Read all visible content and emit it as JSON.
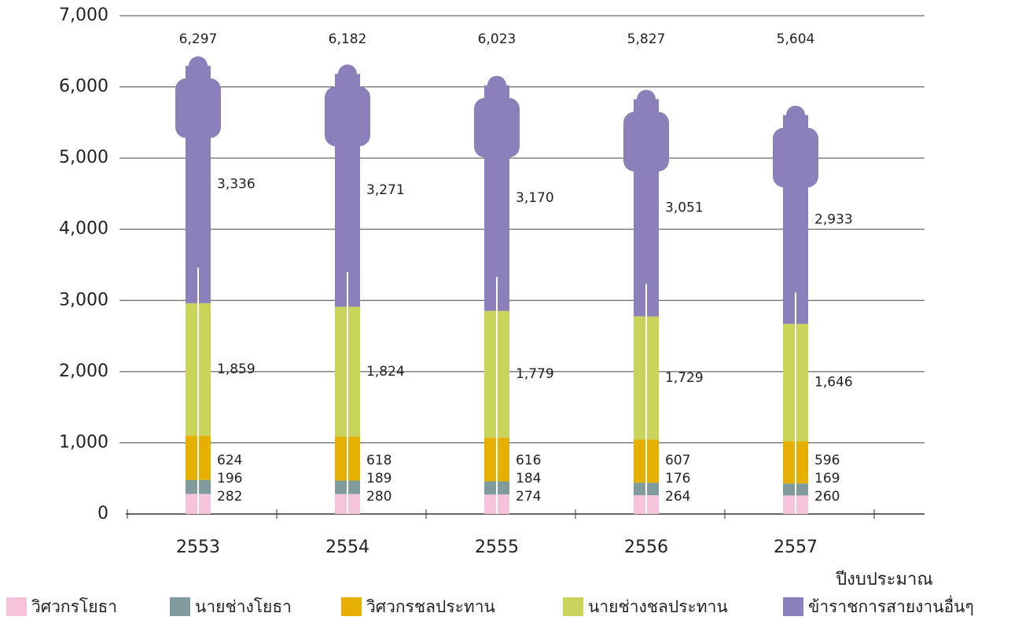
{
  "chart_data": {
    "type": "pictograph-stacked-bar",
    "categories": [
      "2553",
      "2554",
      "2555",
      "2556",
      "2557"
    ],
    "x_label": "ปีงบประมาณ",
    "series": [
      {
        "name": "วิศวกรโยธา",
        "color": "#f5c4da",
        "values": [
          282,
          280,
          274,
          264,
          260
        ],
        "value_labels": [
          "282",
          "280",
          "274",
          "264",
          "260"
        ]
      },
      {
        "name": "นายช่างโยธา",
        "color": "#7f9b9b",
        "values": [
          196,
          189,
          184,
          176,
          169
        ],
        "value_labels": [
          "196",
          "189",
          "184",
          "176",
          "169"
        ]
      },
      {
        "name": "วิศวกรชลประทาน",
        "color": "#e6b000",
        "values": [
          624,
          618,
          616,
          607,
          596
        ],
        "value_labels": [
          "624",
          "618",
          "616",
          "607",
          "596"
        ]
      },
      {
        "name": "นายช่างชลประทาน",
        "color": "#c8d45a",
        "values": [
          1859,
          1824,
          1779,
          1729,
          1646
        ],
        "value_labels": [
          "1,859",
          "1,824",
          "1,779",
          "1,729",
          "1,646"
        ]
      },
      {
        "name": "ข้าราชการสายงานอื่นๆ",
        "color": "#8b80b9",
        "values": [
          3336,
          3271,
          3170,
          3051,
          2933
        ],
        "value_labels": [
          "3,336",
          "3,271",
          "3,170",
          "3,051",
          "2,933"
        ]
      }
    ],
    "totals": [
      6297,
      6182,
      6023,
      5827,
      5604
    ],
    "total_labels": [
      "6,297",
      "6,182",
      "6,023",
      "5,827",
      "5,604"
    ],
    "ylim": [
      0,
      7000
    ],
    "yticks": [
      0,
      {
        "value": 1000,
        "label": "1,000"
      },
      {
        "value": 2000,
        "label": "2,000"
      },
      {
        "value": 3000,
        "label": "3,000"
      },
      {
        "value": 4000,
        "label": "4,000"
      },
      {
        "value": 5000,
        "label": "5,000"
      },
      {
        "value": 6000,
        "label": "6,000"
      },
      {
        "value": 7000,
        "label": "7,000"
      }
    ],
    "grid": true
  }
}
